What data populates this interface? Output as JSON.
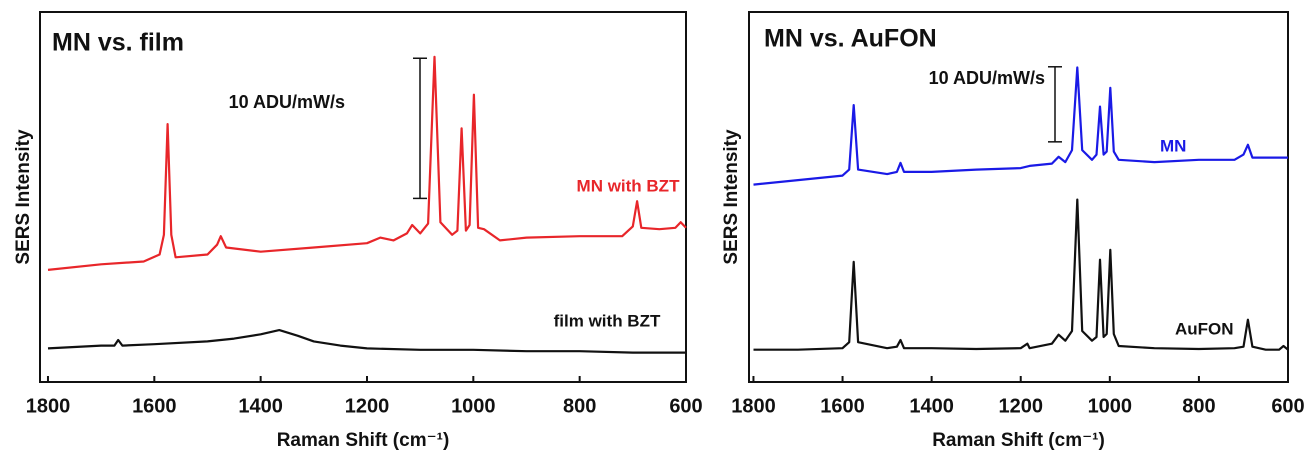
{
  "chart_data": [
    {
      "type": "line",
      "title": "MN vs. film",
      "x_label": "Raman Shift (cm⁻¹)",
      "y_label": "SERS Intensity",
      "xlim": [
        1815,
        600
      ],
      "xticks": [
        1800,
        1600,
        1400,
        1200,
        1000,
        800,
        600
      ],
      "ylim": [
        0,
        26.4
      ],
      "yticks": [],
      "scale_bar": {
        "label": "10 ADU/mW/s",
        "start": 13.1,
        "length": 10
      },
      "series": [
        {
          "name": "MN with BZT",
          "color": "#e8262a",
          "x": [
            1800,
            1700,
            1620,
            1590,
            1582,
            1575,
            1568,
            1560,
            1500,
            1482,
            1475,
            1465,
            1400,
            1300,
            1200,
            1175,
            1150,
            1125,
            1115,
            1100,
            1085,
            1073,
            1062,
            1040,
            1030,
            1022,
            1014,
            1007,
            999,
            991,
            980,
            950,
            900,
            800,
            720,
            700,
            692,
            684,
            650,
            620,
            610,
            600
          ],
          "values": [
            8.0,
            8.4,
            8.6,
            9.1,
            10.5,
            18.4,
            10.5,
            8.9,
            9.1,
            9.8,
            10.4,
            9.6,
            9.3,
            9.6,
            9.9,
            10.3,
            10.1,
            10.6,
            11.2,
            10.6,
            11.3,
            23.2,
            11.4,
            10.5,
            10.8,
            18.1,
            10.8,
            11.2,
            20.5,
            11.0,
            10.9,
            10.1,
            10.3,
            10.4,
            10.4,
            11.1,
            12.9,
            11.0,
            10.9,
            11.0,
            11.4,
            11.0
          ]
        },
        {
          "name": "film with BZT",
          "color": "#111111",
          "x": [
            1800,
            1700,
            1675,
            1668,
            1660,
            1600,
            1500,
            1450,
            1400,
            1365,
            1330,
            1300,
            1250,
            1200,
            1100,
            1000,
            900,
            800,
            700,
            600
          ],
          "values": [
            2.4,
            2.6,
            2.6,
            3.0,
            2.6,
            2.7,
            2.9,
            3.1,
            3.4,
            3.7,
            3.3,
            2.9,
            2.6,
            2.4,
            2.3,
            2.3,
            2.2,
            2.2,
            2.1,
            2.1
          ]
        }
      ]
    },
    {
      "type": "line",
      "title": "MN vs. AuFON",
      "x_label": "Raman Shift (cm⁻¹)",
      "y_label": "SERS Intensity",
      "xlim": [
        1810,
        600
      ],
      "xticks": [
        1800,
        1600,
        1400,
        1200,
        1000,
        800,
        600
      ],
      "ylim": [
        0,
        49.3
      ],
      "yticks": [],
      "scale_bar": {
        "label": "10 ADU/mW/s",
        "start": 32.0,
        "length": 10
      },
      "series": [
        {
          "name": "MN",
          "color": "#1a1ae6",
          "x": [
            1800,
            1700,
            1600,
            1585,
            1575,
            1565,
            1500,
            1478,
            1470,
            1462,
            1400,
            1300,
            1200,
            1180,
            1130,
            1115,
            1100,
            1085,
            1073,
            1062,
            1040,
            1030,
            1022,
            1014,
            1007,
            999,
            991,
            980,
            900,
            800,
            720,
            700,
            690,
            680,
            650,
            600
          ],
          "values": [
            26.3,
            26.9,
            27.5,
            28.3,
            36.9,
            28.3,
            27.7,
            28.0,
            29.2,
            28.0,
            28.0,
            28.3,
            28.5,
            28.8,
            29.1,
            30.0,
            29.3,
            30.9,
            41.9,
            30.9,
            29.6,
            30.3,
            36.7,
            30.3,
            30.7,
            39.2,
            30.7,
            29.6,
            29.3,
            29.6,
            29.6,
            30.3,
            31.6,
            29.9,
            29.9,
            29.9
          ]
        },
        {
          "name": "AuFON",
          "color": "#111111",
          "x": [
            1800,
            1700,
            1600,
            1585,
            1575,
            1565,
            1500,
            1478,
            1470,
            1462,
            1400,
            1300,
            1200,
            1185,
            1180,
            1130,
            1115,
            1100,
            1085,
            1073,
            1062,
            1040,
            1030,
            1022,
            1014,
            1007,
            999,
            991,
            980,
            900,
            800,
            720,
            700,
            690,
            680,
            650,
            620,
            610,
            600
          ],
          "values": [
            4.3,
            4.3,
            4.5,
            5.3,
            16.0,
            5.3,
            4.5,
            4.7,
            5.6,
            4.5,
            4.5,
            4.4,
            4.5,
            5.1,
            4.5,
            5.1,
            6.3,
            5.5,
            6.8,
            24.3,
            6.8,
            5.5,
            6.0,
            16.3,
            6.0,
            6.4,
            17.6,
            6.4,
            4.8,
            4.5,
            4.4,
            4.5,
            4.7,
            8.3,
            4.7,
            4.3,
            4.3,
            4.8,
            4.3
          ]
        }
      ]
    }
  ]
}
